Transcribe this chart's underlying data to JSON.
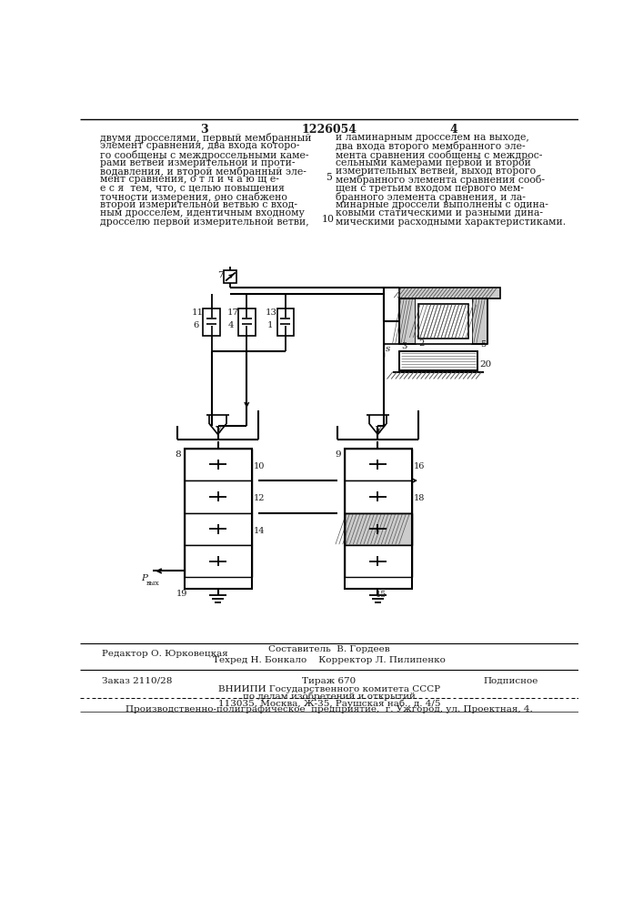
{
  "title_number": "1226054",
  "page_left": "3",
  "page_right": "4",
  "text_left": "двумя дросселями, первый мембранный\nэлемент сравнения, два входа которо-\nго сообщены с междроссельными каме-\nрами ветвей измерительной и проти-\nводавления, и второй мембранный эле-\nмент сравнения, о т л и ч а ю щ е-\nе с я  тем, что, с целью повышения\nточности измерения, оно снабжено\nвторой измерительной ветвью с вход-\nным дросселем, идентичным входному\nдросселю первой измерительной ветви,",
  "text_right": "и ламинарным дросселем на выходе,\nдва входа второго мембранного эле-\nмента сравнения сообщены с междрос-\nсельными камерами первой и второй\nизмерительных ветвей, выход второго\nмембранного элемента сравнения сооб-\nщен с третьим входом первого мем-\nбранного элемента сравнения, и ла-\nминарные дроссели выполнены с одина-\nковыми статическими и разными дина-\nмическими расходными характеристиками.",
  "footer_line1_left": "Редактор О. Юрковецкая",
  "footer_line1_center": "Составитель  В. Гордеев",
  "footer_line2_center": "Техред Н. Бонкало    Корректор Л. Пилипенко",
  "footer_zakas": "Заказ 2110/28",
  "footer_tirazh": "Тираж 670",
  "footer_podpisnoe": "Подписное",
  "footer_vniiipi": "ВНИИПИ Государственного комитета СССР",
  "footer_po_delam": "по делам изобретений и открытий",
  "footer_address": "113035, Москва, Ж-35, Раушская наб., д. 4/5",
  "footer_last": "Производственно-полиграфическое  предприятие,  г. Ужгород, ул. Проектная, 4.",
  "bg_color": "#ffffff",
  "text_color": "#1a1a1a"
}
